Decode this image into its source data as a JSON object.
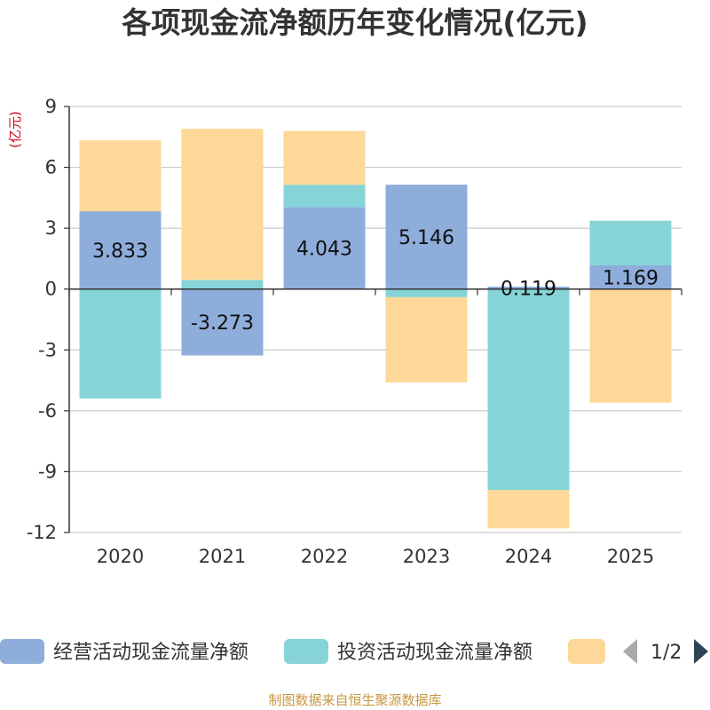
{
  "title": "各项现金流净额历年变化情况(亿元)",
  "source": "制图数据来自恒生聚源数据库",
  "pagination": {
    "text": "1/2",
    "prev_icon": "triangle-left-icon",
    "next_icon": "triangle-right-icon"
  },
  "colors": {
    "operating": "#8eaddb",
    "investing": "#87d4d8",
    "financing": "#fdd898",
    "ylabel": "#d0021b",
    "axis": "#333333",
    "grid": "#cccccc",
    "source": "#c8963e"
  },
  "chart_data": {
    "type": "bar",
    "stacked": true,
    "title": "各项现金流净额历年变化情况(亿元)",
    "ylabel": "(亿元)",
    "xlabel": "",
    "ylim": [
      -12,
      9
    ],
    "yticks": [
      9,
      6,
      3,
      0,
      -3,
      -6,
      -9,
      -12
    ],
    "grid": true,
    "legend_position": "bottom",
    "categories": [
      "2020",
      "2021",
      "2022",
      "2023",
      "2024",
      "2025"
    ],
    "series": [
      {
        "name": "经营活动现金流量净额",
        "key": "operating",
        "values": [
          3.833,
          -3.273,
          4.043,
          5.146,
          0.119,
          1.169
        ],
        "labels": [
          "3.833",
          "-3.273",
          "4.043",
          "5.146",
          "0.119",
          "1.169"
        ]
      },
      {
        "name": "投资活动现金流量净额",
        "key": "investing",
        "values": [
          -5.4,
          0.45,
          1.1,
          -0.4,
          -9.9,
          2.2
        ]
      },
      {
        "name": "",
        "key": "financing",
        "values": [
          3.5,
          7.45,
          2.65,
          -4.2,
          -1.9,
          -5.6
        ]
      }
    ]
  }
}
